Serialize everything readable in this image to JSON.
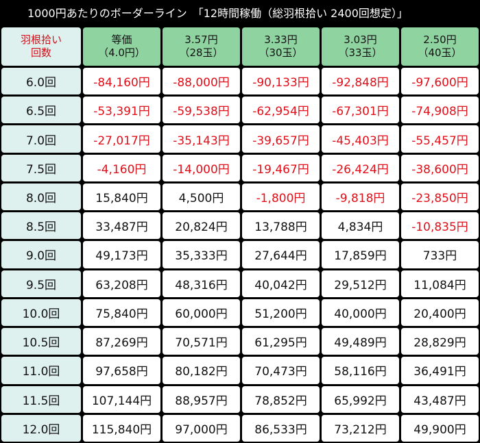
{
  "header": {
    "title": "1000円あたりのボーダーライン　「12時間稼働（総羽根拾い 2400回想定）」"
  },
  "table": {
    "columns": [
      [
        "羽根拾い",
        "回数"
      ],
      [
        "等価",
        "（4.0円）"
      ],
      [
        "3.57円",
        "（28玉）"
      ],
      [
        "3.33円",
        "（30玉）"
      ],
      [
        "3.03円",
        "（33玉）"
      ],
      [
        "2.50円",
        "（40玉）"
      ]
    ],
    "rows": [
      [
        "6.0回",
        "-84,160円",
        "-88,000円",
        "-90,133円",
        "-92,848円",
        "-97,600円"
      ],
      [
        "6.5回",
        "-53,391円",
        "-59,538円",
        "-62,954円",
        "-67,301円",
        "-74,908円"
      ],
      [
        "7.0回",
        "-27,017円",
        "-35,143円",
        "-39,657円",
        "-45,403円",
        "-55,457円"
      ],
      [
        "7.5回",
        "-4,160円",
        "-14,000円",
        "-19,467円",
        "-26,424円",
        "-38,600円"
      ],
      [
        "8.0回",
        "15,840円",
        "4,500円",
        "-1,800円",
        "-9,818円",
        "-23,850円"
      ],
      [
        "8.5回",
        "33,487円",
        "20,824円",
        "13,788円",
        "4,834円",
        "-10,835円"
      ],
      [
        "9.0回",
        "49,173円",
        "35,333円",
        "27,644円",
        "17,859円",
        "733円"
      ],
      [
        "9.5回",
        "63,208円",
        "48,316円",
        "40,042円",
        "29,512円",
        "11,084円"
      ],
      [
        "10.0回",
        "75,840円",
        "60,000円",
        "51,200円",
        "40,000円",
        "20,400円"
      ],
      [
        "10.5回",
        "87,269円",
        "70,571円",
        "61,295円",
        "49,489円",
        "28,829円"
      ],
      [
        "11.0回",
        "97,658円",
        "80,182円",
        "70,473円",
        "58,116円",
        "36,491円"
      ],
      [
        "11.5回",
        "107,144円",
        "88,957円",
        "78,852円",
        "65,992円",
        "43,487円"
      ],
      [
        "12.0回",
        "115,840円",
        "97,000円",
        "86,533円",
        "73,212円",
        "49,900円"
      ]
    ]
  }
}
